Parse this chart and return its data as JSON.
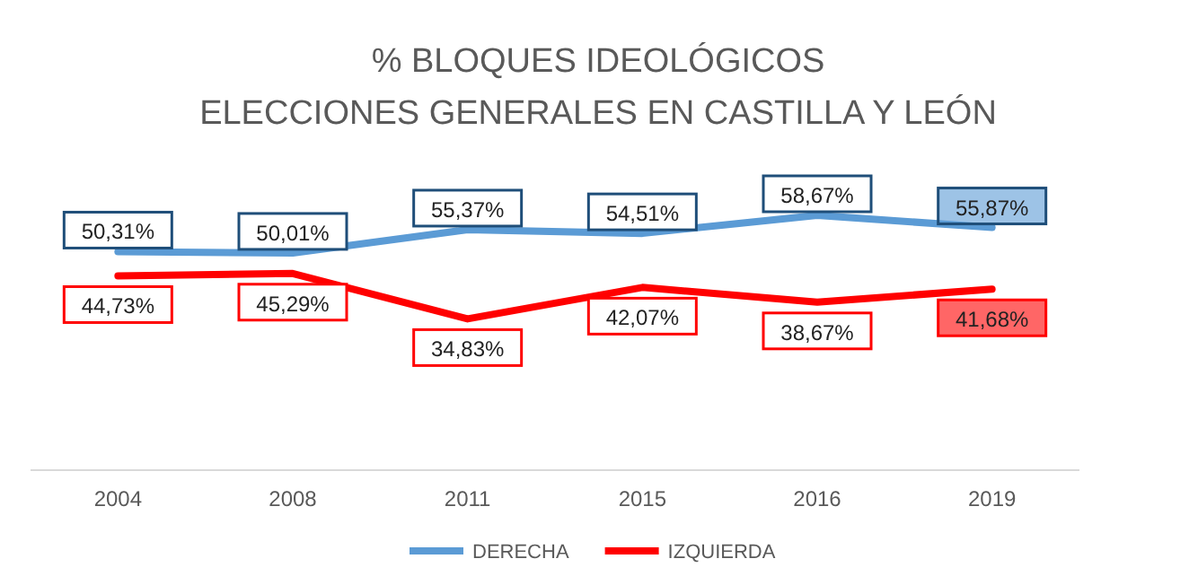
{
  "chart_data": {
    "type": "line",
    "title": "% BLOQUES IDEOLÓGICOS",
    "subtitle": "ELECCIONES GENERALES EN CASTILLA Y LEÓN",
    "categories": [
      "2004",
      "2008",
      "2011",
      "2015",
      "2016",
      "2019"
    ],
    "series": [
      {
        "name": "DERECHA",
        "color": "#5b9bd5",
        "values": [
          50.31,
          50.01,
          55.37,
          54.51,
          58.67,
          55.87
        ],
        "value_labels": [
          "50,31%",
          "50,01%",
          "55,37%",
          "54,51%",
          "58,67%",
          "55,87%"
        ]
      },
      {
        "name": "IZQUIERDA",
        "color": "#ff0000",
        "values": [
          44.73,
          45.29,
          34.83,
          42.07,
          38.67,
          41.68
        ],
        "value_labels": [
          "44,73%",
          "45,29%",
          "34,83%",
          "42,07%",
          "38,67%",
          "41,68%"
        ]
      }
    ],
    "legend": "bottom",
    "marker": "none",
    "line_style": "solid",
    "tick_labels": "x"
  }
}
